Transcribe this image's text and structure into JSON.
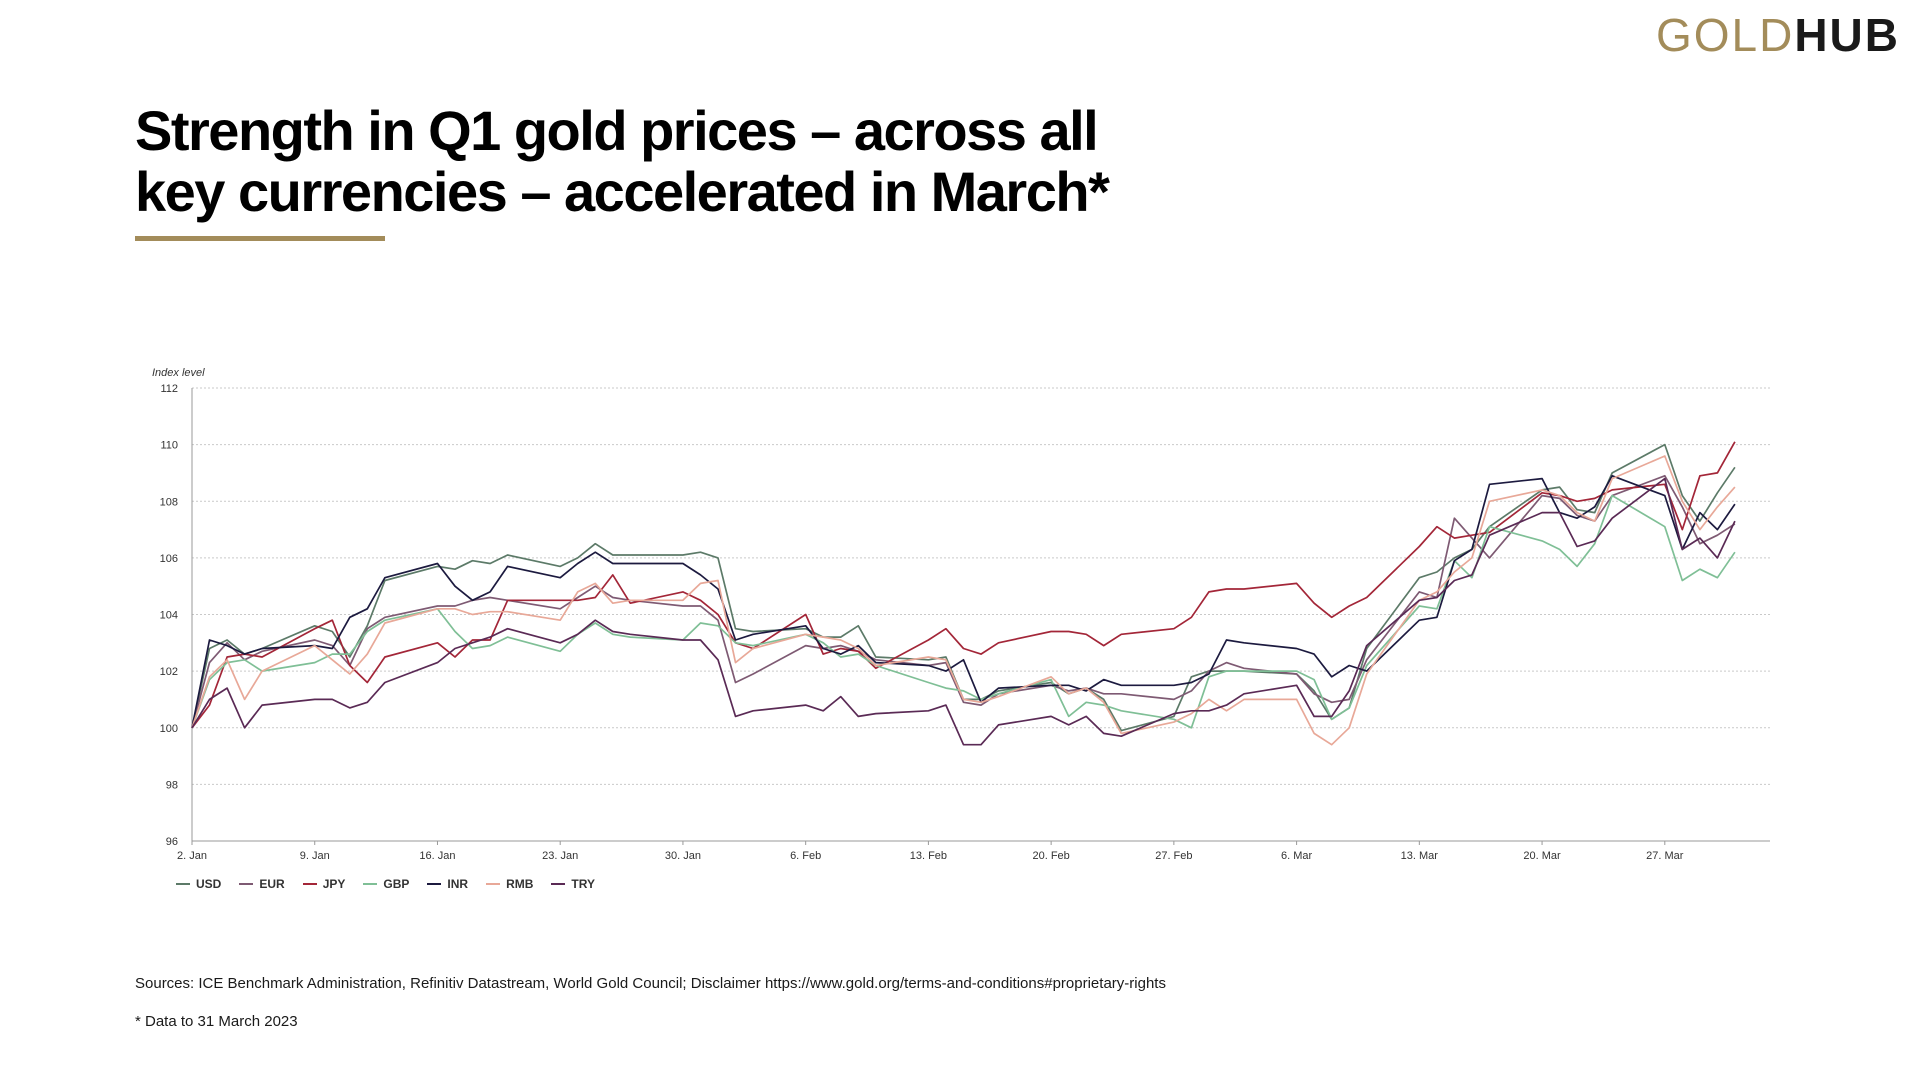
{
  "brand": {
    "logo_gold": "GOLD",
    "logo_hub": "HUB"
  },
  "header": {
    "title_line1": "Strength in Q1 gold prices – across all",
    "title_line2": "key currencies – accelerated in March*"
  },
  "footer": {
    "source": "Sources: ICE Benchmark Administration, Refinitiv Datastream, World Gold Council; Disclaimer https://www.gold.org/terms-and-conditions#proprietary-rights",
    "note": "* Data to 31 March 2023"
  },
  "colors": {
    "accent": "#a38c5a"
  },
  "chart_data": {
    "type": "line",
    "ylabel": "Index level",
    "ylim": [
      96,
      112
    ],
    "yticks": [
      "96",
      "98",
      "100",
      "102",
      "104",
      "106",
      "108",
      "110",
      "112"
    ],
    "xticks": [
      "2. Jan",
      "9. Jan",
      "16. Jan",
      "23. Jan",
      "30. Jan",
      "6. Feb",
      "13. Feb",
      "20. Feb",
      "27. Feb",
      "6. Mar",
      "13. Mar",
      "20. Mar",
      "27. Mar"
    ],
    "x": [
      "2023-01-02",
      "2023-01-03",
      "2023-01-04",
      "2023-01-05",
      "2023-01-06",
      "2023-01-09",
      "2023-01-10",
      "2023-01-11",
      "2023-01-12",
      "2023-01-13",
      "2023-01-16",
      "2023-01-17",
      "2023-01-18",
      "2023-01-19",
      "2023-01-20",
      "2023-01-23",
      "2023-01-24",
      "2023-01-25",
      "2023-01-26",
      "2023-01-27",
      "2023-01-30",
      "2023-01-31",
      "2023-02-01",
      "2023-02-02",
      "2023-02-03",
      "2023-02-06",
      "2023-02-07",
      "2023-02-08",
      "2023-02-09",
      "2023-02-10",
      "2023-02-13",
      "2023-02-14",
      "2023-02-15",
      "2023-02-16",
      "2023-02-17",
      "2023-02-20",
      "2023-02-21",
      "2023-02-22",
      "2023-02-23",
      "2023-02-24",
      "2023-02-27",
      "2023-02-28",
      "2023-03-01",
      "2023-03-02",
      "2023-03-03",
      "2023-03-06",
      "2023-03-07",
      "2023-03-08",
      "2023-03-09",
      "2023-03-10",
      "2023-03-13",
      "2023-03-14",
      "2023-03-15",
      "2023-03-16",
      "2023-03-17",
      "2023-03-20",
      "2023-03-21",
      "2023-03-22",
      "2023-03-23",
      "2023-03-24",
      "2023-03-27",
      "2023-03-28",
      "2023-03-29",
      "2023-03-30",
      "2023-03-31"
    ],
    "grid": true,
    "legend_position": "bottom-left",
    "series": [
      {
        "name": "USD",
        "color": "#5c7a68",
        "values": [
          100.0,
          102.8,
          103.1,
          102.6,
          102.8,
          103.6,
          103.4,
          102.5,
          103.6,
          105.2,
          105.7,
          105.6,
          105.9,
          105.8,
          106.1,
          105.7,
          106.0,
          106.5,
          106.1,
          106.1,
          106.1,
          106.2,
          106.0,
          103.5,
          103.4,
          103.5,
          103.2,
          103.2,
          103.6,
          102.5,
          102.4,
          102.5,
          101.0,
          101.0,
          101.3,
          101.6,
          101.2,
          101.4,
          101.0,
          99.9,
          100.4,
          101.8,
          102.0,
          102.0,
          102.0,
          101.9,
          101.3,
          100.3,
          100.7,
          102.8,
          105.3,
          105.5,
          106.0,
          106.3,
          107.1,
          108.4,
          108.5,
          107.7,
          107.6,
          109.0,
          110.0,
          108.2,
          107.3,
          108.3,
          109.2
        ]
      },
      {
        "name": "EUR",
        "color": "#7e5a73",
        "values": [
          100.0,
          102.3,
          103.0,
          102.4,
          102.7,
          103.1,
          102.9,
          102.2,
          103.5,
          103.9,
          104.3,
          104.3,
          104.5,
          104.6,
          104.5,
          104.2,
          104.6,
          105.0,
          104.6,
          104.5,
          104.3,
          104.3,
          103.8,
          101.6,
          101.9,
          102.9,
          102.8,
          102.9,
          102.7,
          102.4,
          102.2,
          102.3,
          100.9,
          100.8,
          101.2,
          101.5,
          101.3,
          101.4,
          101.2,
          101.2,
          101.0,
          101.3,
          102.0,
          102.3,
          102.1,
          101.9,
          101.2,
          100.9,
          101.0,
          102.4,
          104.8,
          104.6,
          107.4,
          106.7,
          106.0,
          108.2,
          108.1,
          107.5,
          107.3,
          108.2,
          108.9,
          107.8,
          106.5,
          106.8,
          107.2
        ]
      },
      {
        "name": "JPY",
        "color": "#a32638",
        "values": [
          100.0,
          100.8,
          102.5,
          102.6,
          102.5,
          103.5,
          103.8,
          102.2,
          101.6,
          102.5,
          103.0,
          102.5,
          103.1,
          103.1,
          104.5,
          104.5,
          104.5,
          104.6,
          105.4,
          104.4,
          104.8,
          104.5,
          104.0,
          103.0,
          102.8,
          104.0,
          102.6,
          102.8,
          102.7,
          102.1,
          103.1,
          103.5,
          102.8,
          102.6,
          103.0,
          103.4,
          103.4,
          103.3,
          102.9,
          103.3,
          103.5,
          103.9,
          104.8,
          104.9,
          104.9,
          105.1,
          104.4,
          103.9,
          104.3,
          104.6,
          106.4,
          107.1,
          106.7,
          106.8,
          106.9,
          108.3,
          108.2,
          108.0,
          108.1,
          108.4,
          108.6,
          107.0,
          108.9,
          109.0,
          110.1
        ]
      },
      {
        "name": "GBP",
        "color": "#7fbf96",
        "values": [
          100.0,
          101.7,
          102.3,
          102.4,
          102.0,
          102.3,
          102.6,
          102.6,
          103.4,
          103.8,
          104.2,
          103.4,
          102.8,
          102.9,
          103.2,
          102.7,
          103.3,
          103.7,
          103.3,
          103.2,
          103.1,
          103.7,
          103.6,
          103.0,
          102.9,
          103.3,
          103.0,
          102.5,
          102.6,
          102.2,
          101.6,
          101.4,
          101.3,
          101.0,
          101.2,
          101.7,
          100.4,
          100.9,
          100.8,
          100.6,
          100.3,
          100.0,
          101.8,
          102.0,
          102.0,
          102.0,
          101.7,
          100.3,
          100.7,
          102.2,
          104.3,
          104.2,
          105.9,
          105.3,
          107.1,
          106.6,
          106.3,
          105.7,
          106.5,
          108.2,
          107.1,
          105.2,
          105.6,
          105.3,
          106.2
        ]
      },
      {
        "name": "INR",
        "color": "#1c1a3f",
        "values": [
          100.0,
          103.1,
          102.9,
          102.6,
          102.8,
          102.9,
          102.8,
          103.9,
          104.2,
          105.3,
          105.8,
          105.0,
          104.5,
          104.8,
          105.7,
          105.3,
          105.8,
          106.2,
          105.8,
          105.8,
          105.8,
          105.4,
          104.9,
          103.1,
          103.3,
          103.6,
          102.8,
          102.6,
          102.9,
          102.3,
          102.2,
          102.0,
          102.4,
          100.9,
          101.4,
          101.5,
          101.5,
          101.3,
          101.7,
          101.5,
          101.5,
          101.6,
          101.9,
          103.1,
          103.0,
          102.8,
          102.6,
          101.8,
          102.2,
          102.0,
          103.8,
          103.9,
          105.9,
          106.3,
          108.6,
          108.8,
          107.6,
          107.4,
          107.8,
          108.9,
          108.2,
          106.3,
          107.6,
          107.0,
          107.9
        ]
      },
      {
        "name": "RMB",
        "color": "#e8a898",
        "values": [
          100.0,
          101.8,
          102.4,
          101.0,
          102.0,
          102.9,
          102.4,
          101.9,
          102.6,
          103.7,
          104.2,
          104.2,
          104.0,
          104.1,
          104.1,
          103.8,
          104.8,
          105.1,
          104.4,
          104.5,
          104.5,
          105.1,
          105.2,
          102.3,
          102.8,
          103.3,
          103.2,
          103.1,
          102.8,
          102.2,
          102.5,
          102.4,
          101.0,
          100.9,
          101.1,
          101.8,
          101.2,
          101.4,
          100.9,
          99.8,
          100.2,
          100.5,
          101.0,
          100.6,
          101.0,
          101.0,
          99.8,
          99.4,
          100.0,
          101.9,
          104.5,
          104.8,
          105.5,
          106.0,
          108.0,
          108.4,
          108.2,
          107.6,
          107.3,
          108.8,
          109.6,
          108.0,
          107.0,
          107.8,
          108.5
        ]
      },
      {
        "name": "TRY",
        "color": "#5a2a55",
        "values": [
          100.0,
          101.0,
          101.4,
          100.0,
          100.8,
          101.0,
          101.0,
          100.7,
          100.9,
          101.6,
          102.3,
          102.8,
          103.0,
          103.2,
          103.5,
          103.0,
          103.3,
          103.8,
          103.4,
          103.3,
          103.1,
          103.1,
          102.4,
          100.4,
          100.6,
          100.8,
          100.6,
          101.1,
          100.4,
          100.5,
          100.6,
          100.8,
          99.4,
          99.4,
          100.1,
          100.4,
          100.1,
          100.4,
          99.8,
          99.7,
          100.5,
          100.6,
          100.6,
          100.8,
          101.2,
          101.5,
          100.4,
          100.4,
          101.3,
          102.9,
          104.5,
          104.6,
          105.2,
          105.4,
          106.8,
          107.6,
          107.6,
          106.4,
          106.6,
          107.4,
          108.8,
          106.3,
          106.7,
          106.0,
          107.3
        ]
      }
    ]
  }
}
